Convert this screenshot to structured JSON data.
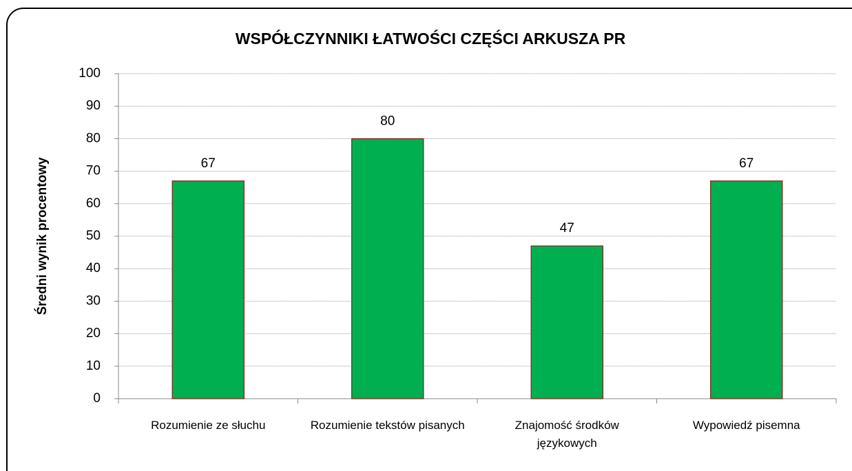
{
  "chart_data": {
    "type": "bar",
    "title": "WSPÓŁCZYNNIKI ŁATWOŚCI CZĘŚCI ARKUSZA PR",
    "y_label": "Średni wynik procentowy",
    "categories": [
      "Rozumienie ze słuchu",
      "Rozumienie tekstów pisanych",
      "Znajomość środków językowych",
      "Wypowiedź pisemna"
    ],
    "values": [
      67,
      80,
      47,
      67
    ],
    "color": "#00b050",
    "edge_color": "#8b1a1a",
    "ylim": [
      0,
      100
    ],
    "yticks": [
      0,
      10,
      20,
      30,
      40,
      50,
      60,
      70,
      80,
      90,
      100
    ],
    "grid": true
  }
}
